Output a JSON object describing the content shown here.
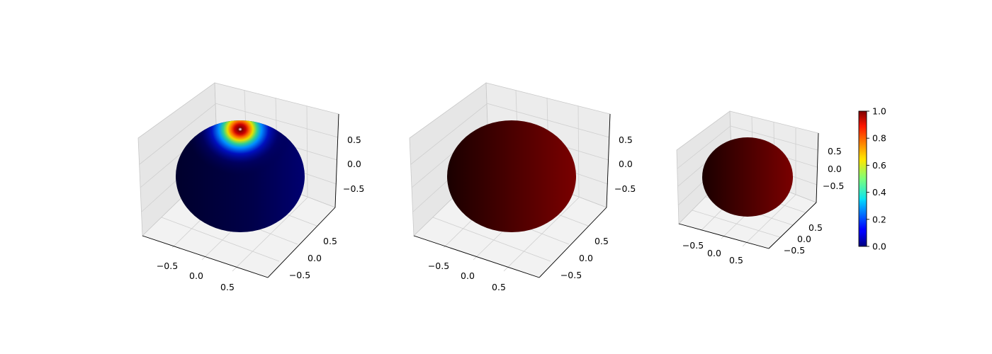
{
  "chart_data": {
    "type": "surface3d",
    "description_of_figure": "",
    "panels": [
      {
        "shape": "sphere",
        "radius": 1,
        "coloring": "jet colormap by distance from the north pole, peak value 1 at the pole, falling to 0 elsewhere",
        "x_ticks": [
          "−0.5",
          "0.0",
          "0.5"
        ],
        "y_ticks": [
          "0.5",
          "0.0",
          "−0.5"
        ],
        "z_ticks": [
          "0.5",
          "0.0",
          "−0.5"
        ]
      },
      {
        "shape": "sphere",
        "radius": 1,
        "coloring": "uniform dark red shaded left to right",
        "x_ticks": [
          "−0.5",
          "0.0",
          "0.5"
        ],
        "y_ticks": [
          "0.5",
          "0.0",
          "−0.5"
        ],
        "z_ticks": [
          "0.5",
          "0.0",
          "−0.5"
        ]
      },
      {
        "shape": "sphere",
        "radius": 1,
        "coloring": "uniform dark red shaded left to right",
        "x_ticks": [
          "−0.5",
          "0.0",
          "0.5"
        ],
        "y_ticks": [
          "0.5",
          "0.0",
          "−0.5"
        ],
        "z_ticks": [
          "0.5",
          "0.0",
          "−0.5"
        ]
      }
    ],
    "colorbar": {
      "colormap": "jet",
      "range": [
        0,
        1
      ],
      "ticks": [
        "0.0",
        "0.2",
        "0.4",
        "0.6",
        "0.8",
        "1.0"
      ]
    },
    "colors": {
      "pane": "#f2f2f2",
      "pane_side": "#e6e6e6",
      "grid": "#cccccc",
      "sphere_dark": "#1a0000",
      "sphere_red": "#7a0000",
      "navy": "#00003a"
    }
  }
}
